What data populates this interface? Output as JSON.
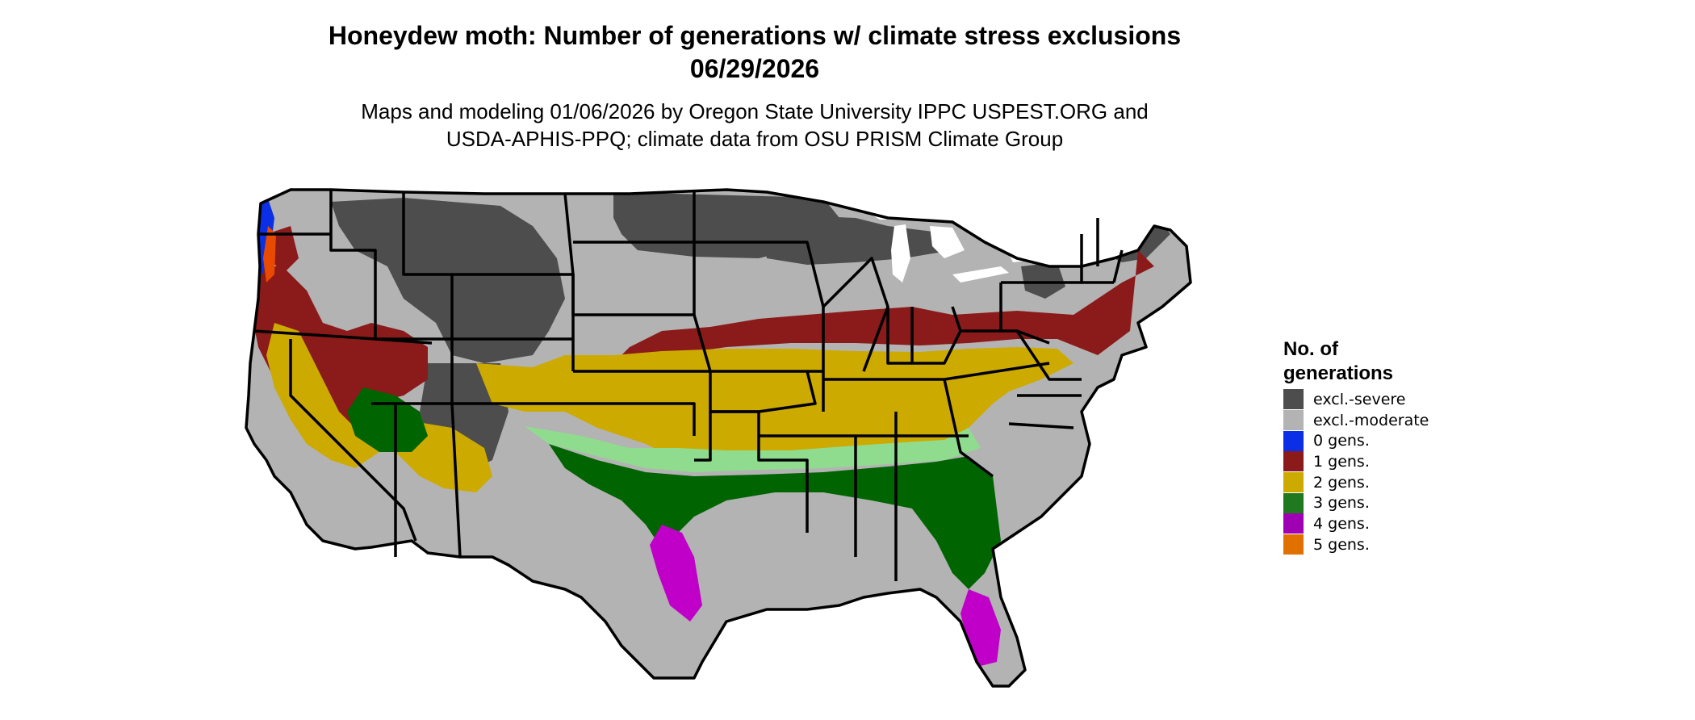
{
  "title": {
    "line1": "Honeydew moth: Number of generations w/ climate stress exclusions",
    "line2": "06/29/2026"
  },
  "subtitle": {
    "line1": "Maps and modeling 01/06/2026 by Oregon State University IPPC USPEST.ORG and",
    "line2": "USDA-APHIS-PPQ; climate data from OSU PRISM Climate Group"
  },
  "legend": {
    "title_line1": "No. of",
    "title_line2": "generations",
    "items": [
      {
        "label": "excl.-severe",
        "color": "#4d4d4d"
      },
      {
        "label": "excl.-moderate",
        "color": "#b3b3b3"
      },
      {
        "label": "0 gens.",
        "color": "#0a2fe6"
      },
      {
        "label": "1 gens.",
        "color": "#8b1a1a"
      },
      {
        "label": "2 gens.",
        "color": "#cdaa00"
      },
      {
        "label": "3 gens.",
        "color": "#1f7a1f"
      },
      {
        "label": "4 gens.",
        "color": "#a000b4"
      },
      {
        "label": "5 gens.",
        "color": "#e07000"
      }
    ]
  },
  "map": {
    "region": "Conterminous United States",
    "colors": {
      "severe": "#4d4d4d",
      "moderate": "#b3b3b3",
      "gen0": "#0a2fe6",
      "gen1": "#8b1a1a",
      "gen2": "#cdaa00",
      "gen3": "#006400",
      "gen3_light": "#8fdc8f",
      "gen4": "#c000c8",
      "gen5": "#e07000",
      "boundary": "#000000",
      "water": "#ffffff"
    }
  }
}
